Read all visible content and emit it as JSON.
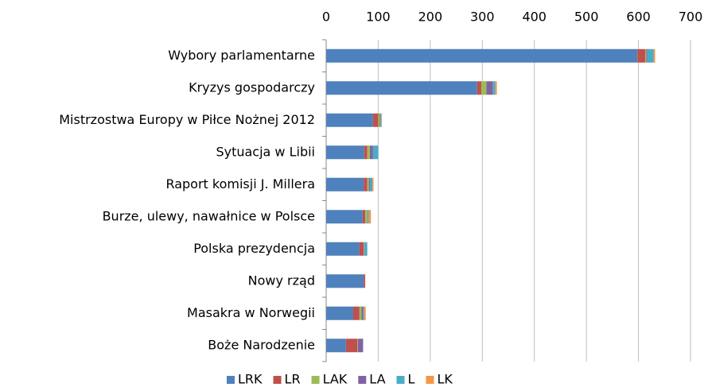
{
  "chart_data": {
    "type": "bar",
    "orientation": "horizontal",
    "stacked": true,
    "categories": [
      "Wybory parlamentarne",
      "Kryzys gospodarczy",
      "Mistrzostwa Europy w Piłce Nożnej 2012",
      "Sytuacja w Libii",
      "Raport komisji J. Millera",
      "Burze, ulewy, nawałnice w Polsce",
      "Polska prezydencja",
      "Nowy rząd",
      "Masakra w Norwegii",
      "Boże Narodzenie"
    ],
    "series": [
      {
        "name": "LRK",
        "color": "#4f81bd",
        "values": [
          598,
          290,
          90,
          73,
          72,
          70,
          64,
          72,
          52,
          38
        ]
      },
      {
        "name": "LR",
        "color": "#c0504d",
        "values": [
          15,
          8,
          10,
          6,
          7,
          5,
          8,
          3,
          12,
          22
        ]
      },
      {
        "name": "LAK",
        "color": "#9bbb59",
        "values": [
          2,
          10,
          3,
          5,
          3,
          4,
          1,
          0,
          4,
          1
        ]
      },
      {
        "name": "LA",
        "color": "#8064a2",
        "values": [
          2,
          12,
          1,
          6,
          2,
          1,
          1,
          0,
          3,
          10
        ]
      },
      {
        "name": "L",
        "color": "#4bacc6",
        "values": [
          12,
          5,
          2,
          10,
          5,
          2,
          5,
          0,
          2,
          0
        ]
      },
      {
        "name": "LK",
        "color": "#f79646",
        "values": [
          3,
          3,
          1,
          0,
          2,
          4,
          0,
          0,
          3,
          0
        ]
      }
    ],
    "xlim": [
      0,
      700
    ],
    "xticks": [
      0,
      100,
      200,
      300,
      400,
      500,
      600,
      700
    ],
    "grid": true,
    "legend": "bottom"
  }
}
